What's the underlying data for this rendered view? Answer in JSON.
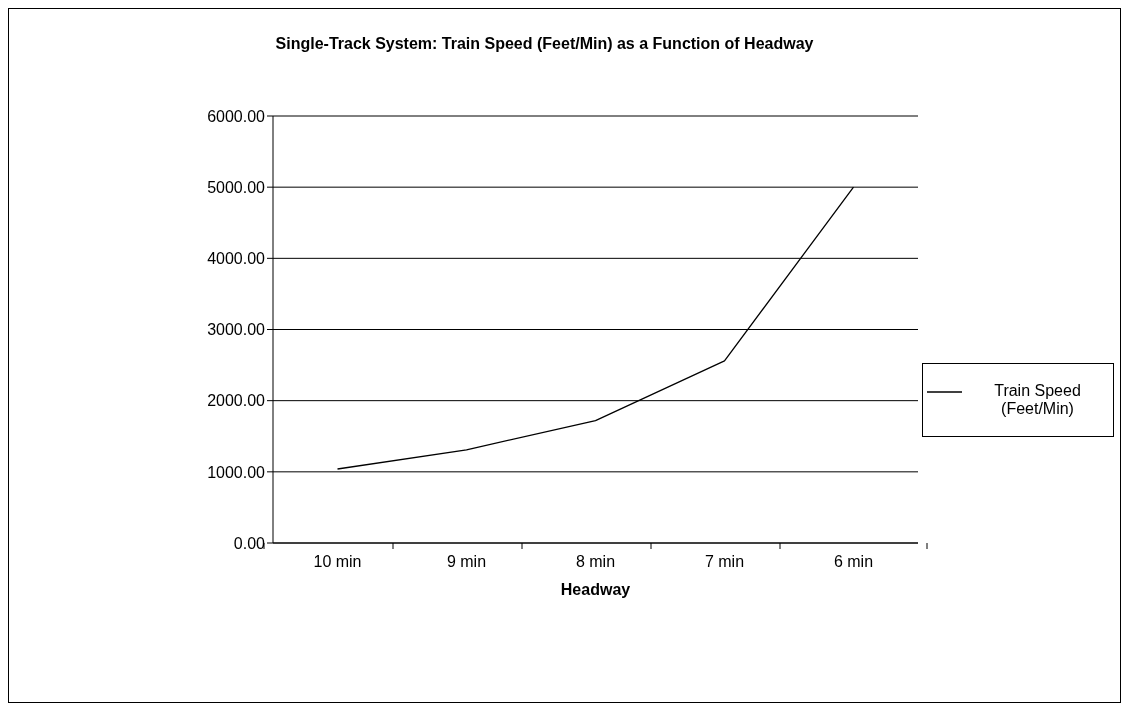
{
  "chart_data": {
    "type": "line",
    "title": "Single-Track System: Train Speed (Feet/Min) as a Function of Headway",
    "xlabel": "Headway",
    "categories": [
      "10 min",
      "9 min",
      "8 min",
      "7 min",
      "6 min"
    ],
    "series": [
      {
        "name": "Train Speed (Feet/Min)",
        "color": "#000000",
        "values": [
          1040,
          1310,
          1720,
          2560,
          5000
        ]
      }
    ],
    "ylim": [
      0,
      6000
    ],
    "yticks": [
      {
        "value": 0,
        "label": "0.00"
      },
      {
        "value": 1000,
        "label": "1000.00"
      },
      {
        "value": 2000,
        "label": "2000.00"
      },
      {
        "value": 3000,
        "label": "3000.00"
      },
      {
        "value": 4000,
        "label": "4000.00"
      },
      {
        "value": 5000,
        "label": "5000.00"
      },
      {
        "value": 6000,
        "label": "6000.00"
      }
    ],
    "grid": "y",
    "legend": "right",
    "marker": "none",
    "line_style": "solid"
  }
}
